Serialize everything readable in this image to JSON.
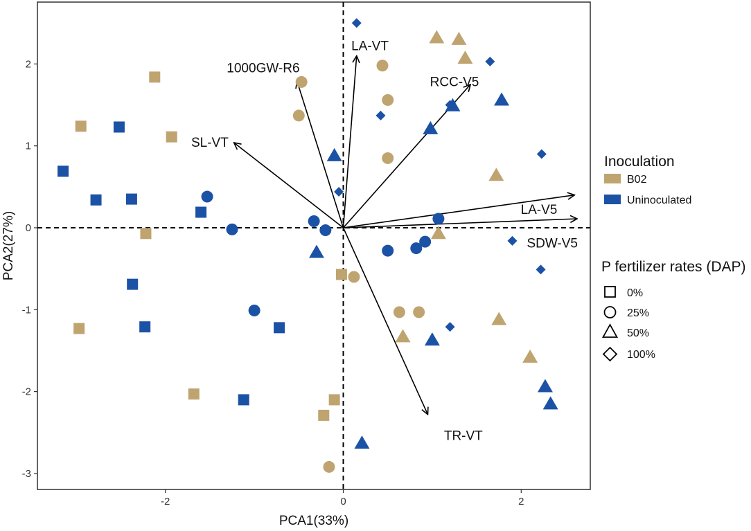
{
  "chart_data": {
    "type": "scatter",
    "subtype": "pca-biplot",
    "title": "",
    "xlabel": "PCA1(33%)",
    "ylabel": "PCA2(27%)",
    "xlim": [
      -3.4,
      2.7
    ],
    "ylim": [
      -3.2,
      2.6
    ],
    "xticks": [
      -2,
      0,
      2
    ],
    "yticks": [
      -3,
      -2,
      -1,
      0,
      1,
      2
    ],
    "grid": false,
    "reference_lines": {
      "x": 0,
      "y": 0,
      "style": "dashed"
    },
    "colors": {
      "B02": "#BFA470",
      "Uninoculated": "#1B52A5"
    },
    "vectors": [
      {
        "label": "1000GW-R6",
        "x": -0.52,
        "y": 1.79
      },
      {
        "label": "LA-VT",
        "x": 0.15,
        "y": 2.1
      },
      {
        "label": "RCC-V5",
        "x": 1.43,
        "y": 1.75
      },
      {
        "label": "SL-VT",
        "x": -1.23,
        "y": 1.04
      },
      {
        "label": "LA-V5",
        "x": 2.6,
        "y": 0.4
      },
      {
        "label": "SDW-V5",
        "x": 2.63,
        "y": 0.11
      },
      {
        "label": "TR-VT",
        "x": 0.95,
        "y": -2.28
      }
    ],
    "series": [
      {
        "inoculation": "B02",
        "p_rate": "0%",
        "shape": "square",
        "points": [
          [
            -2.12,
            1.84
          ],
          [
            -2.95,
            1.24
          ],
          [
            -1.93,
            1.11
          ],
          [
            -2.22,
            -0.07
          ],
          [
            -2.97,
            -1.23
          ],
          [
            -1.68,
            -2.03
          ],
          [
            -0.22,
            -2.29
          ],
          [
            -0.1,
            -2.1
          ],
          [
            -0.02,
            -0.57
          ]
        ]
      },
      {
        "inoculation": "B02",
        "p_rate": "25%",
        "shape": "circle",
        "points": [
          [
            -0.47,
            1.78
          ],
          [
            -0.5,
            1.37
          ],
          [
            0.44,
            1.98
          ],
          [
            0.5,
            1.56
          ],
          [
            0.5,
            0.85
          ],
          [
            0.12,
            -0.6
          ],
          [
            0.63,
            -1.03
          ],
          [
            0.85,
            -1.03
          ],
          [
            -0.16,
            -2.92
          ]
        ]
      },
      {
        "inoculation": "B02",
        "p_rate": "50%",
        "shape": "triangle",
        "points": [
          [
            1.05,
            2.32
          ],
          [
            1.3,
            2.3
          ],
          [
            1.37,
            2.07
          ],
          [
            1.72,
            0.64
          ],
          [
            1.07,
            -0.07
          ],
          [
            0.67,
            -1.33
          ],
          [
            1.75,
            -1.12
          ],
          [
            2.1,
            -1.58
          ]
        ]
      },
      {
        "inoculation": "Uninoculated",
        "p_rate": "0%",
        "shape": "square",
        "points": [
          [
            -2.52,
            1.23
          ],
          [
            -3.15,
            0.69
          ],
          [
            -2.78,
            0.34
          ],
          [
            -2.38,
            0.35
          ],
          [
            -1.6,
            0.19
          ],
          [
            -2.37,
            -0.69
          ],
          [
            -2.23,
            -1.21
          ],
          [
            -0.72,
            -1.22
          ],
          [
            -1.12,
            -2.1
          ]
        ]
      },
      {
        "inoculation": "Uninoculated",
        "p_rate": "25%",
        "shape": "circle",
        "points": [
          [
            -1.53,
            0.38
          ],
          [
            -1.25,
            -0.02
          ],
          [
            -0.33,
            0.08
          ],
          [
            -0.2,
            -0.03
          ],
          [
            0.5,
            -0.28
          ],
          [
            0.82,
            -0.25
          ],
          [
            0.92,
            -0.17
          ],
          [
            1.07,
            0.11
          ],
          [
            -1.0,
            -1.01
          ]
        ]
      },
      {
        "inoculation": "Uninoculated",
        "p_rate": "50%",
        "shape": "triangle",
        "points": [
          [
            -0.1,
            0.88
          ],
          [
            0.98,
            1.21
          ],
          [
            1.23,
            1.49
          ],
          [
            1.78,
            1.56
          ],
          [
            -0.3,
            -0.3
          ],
          [
            1.0,
            -1.37
          ],
          [
            2.27,
            -1.94
          ],
          [
            2.33,
            -2.15
          ],
          [
            0.21,
            -2.63
          ]
        ]
      },
      {
        "inoculation": "Uninoculated",
        "p_rate": "100%",
        "shape": "diamond",
        "points": [
          [
            0.15,
            2.5
          ],
          [
            1.65,
            2.03
          ],
          [
            0.42,
            1.37
          ],
          [
            1.2,
            1.5
          ],
          [
            2.23,
            0.9
          ],
          [
            -0.05,
            0.44
          ],
          [
            1.9,
            -0.16
          ],
          [
            2.22,
            -0.51
          ],
          [
            1.2,
            -1.21
          ]
        ]
      }
    ]
  },
  "legend": {
    "inoculation": {
      "title": "Inoculation",
      "items": [
        {
          "label": "B02",
          "color": "#BFA470"
        },
        {
          "label": "Uninoculated",
          "color": "#1B52A5"
        }
      ]
    },
    "p_rates": {
      "title": "P fertilizer rates (DAP)",
      "items": [
        {
          "label": "0%",
          "shape": "square"
        },
        {
          "label": "25%",
          "shape": "circle"
        },
        {
          "label": "50%",
          "shape": "triangle"
        },
        {
          "label": "100%",
          "shape": "diamond"
        }
      ]
    }
  }
}
